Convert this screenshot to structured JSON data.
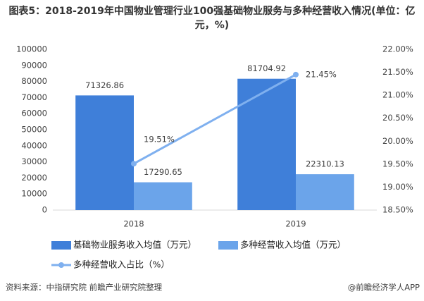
{
  "chart_data": {
    "type": "bar_line",
    "title": "图表5：2018-2019年中国物业管理行业100强基础物业服务与多种经营收入情况(单位：亿元，%)",
    "categories": [
      "2018",
      "2019"
    ],
    "series": [
      {
        "name": "基础物业服务收入均值（万元）",
        "type": "bar",
        "color": "#3f7fd9",
        "values": [
          71326.86,
          81704.92
        ]
      },
      {
        "name": "多种经营收入均值（万元）",
        "type": "bar",
        "color": "#6ba4ea",
        "values": [
          17290.65,
          22310.13
        ]
      },
      {
        "name": "多种经营收入占比（%）",
        "type": "line",
        "axis": "y2",
        "color": "#7fb0ef",
        "values": [
          19.51,
          21.45
        ],
        "value_labels": [
          "19.51%",
          "21.45%"
        ]
      }
    ],
    "ylim": [
      0,
      100000
    ],
    "yticks": [
      0,
      10000,
      20000,
      30000,
      40000,
      50000,
      60000,
      70000,
      80000,
      90000,
      100000
    ],
    "y2lim": [
      18.5,
      22
    ],
    "y2ticks": [
      {
        "value": 18.5,
        "label": "18.50%"
      },
      {
        "value": 19,
        "label": "19.00%"
      },
      {
        "value": 19.5,
        "label": "19.50%"
      },
      {
        "value": 20,
        "label": "20.00%"
      },
      {
        "value": 20.5,
        "label": "20.50%"
      },
      {
        "value": 21,
        "label": "21.00%"
      },
      {
        "value": 21.5,
        "label": "21.50%"
      },
      {
        "value": 22,
        "label": "22.00%"
      }
    ],
    "source": "资料来源：中指研究院 前瞻产业研究院整理",
    "credit": "@前瞻经济学人APP"
  }
}
